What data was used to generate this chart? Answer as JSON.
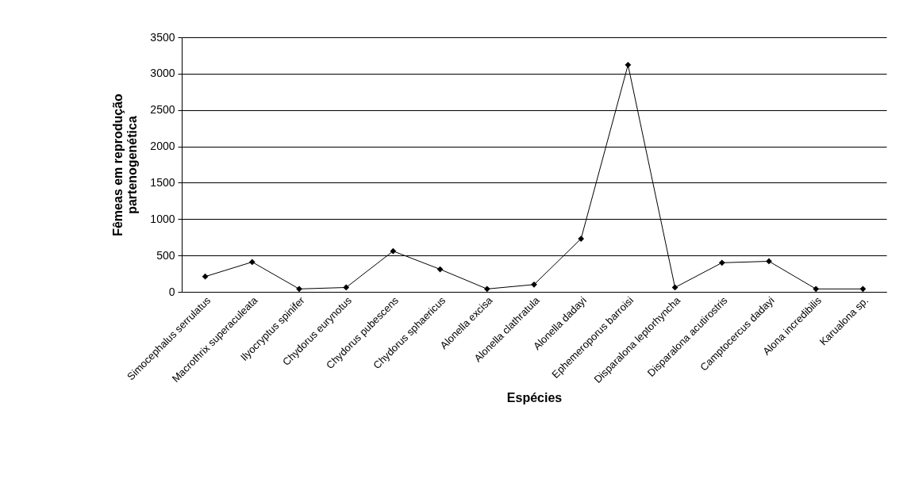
{
  "chart_data": {
    "type": "line",
    "xlabel": "Espécies",
    "ylabel": "Fêmeas em reprodução partenogenética",
    "categories": [
      "Simocephalus serrulatus",
      "Macrothrix superaculeata",
      "Ilyocryptus spinifer",
      "Chydorus eurynotus",
      "Chydorus pubescens",
      "Chydorus sphaericus",
      "Alonella excisa",
      "Alonella clathratula",
      "Alonella dadayi",
      "Ephemeroporus barroisi",
      "Disparalona leptorhyncha",
      "Disparalona acutirostris",
      "Camptocercus dadayi",
      "Alona incredibilis",
      "Karualona sp."
    ],
    "series": [
      {
        "color": "#000000",
        "values": [
          210,
          410,
          40,
          60,
          560,
          310,
          40,
          100,
          730,
          3120,
          60,
          400,
          420,
          40,
          40
        ]
      }
    ],
    "ylim": [
      0,
      3500
    ],
    "yticks": [
      0,
      500,
      1000,
      1500,
      2000,
      2500,
      3000,
      3500
    ],
    "grid": "y",
    "marker": "diamond",
    "line_style": "solid"
  }
}
